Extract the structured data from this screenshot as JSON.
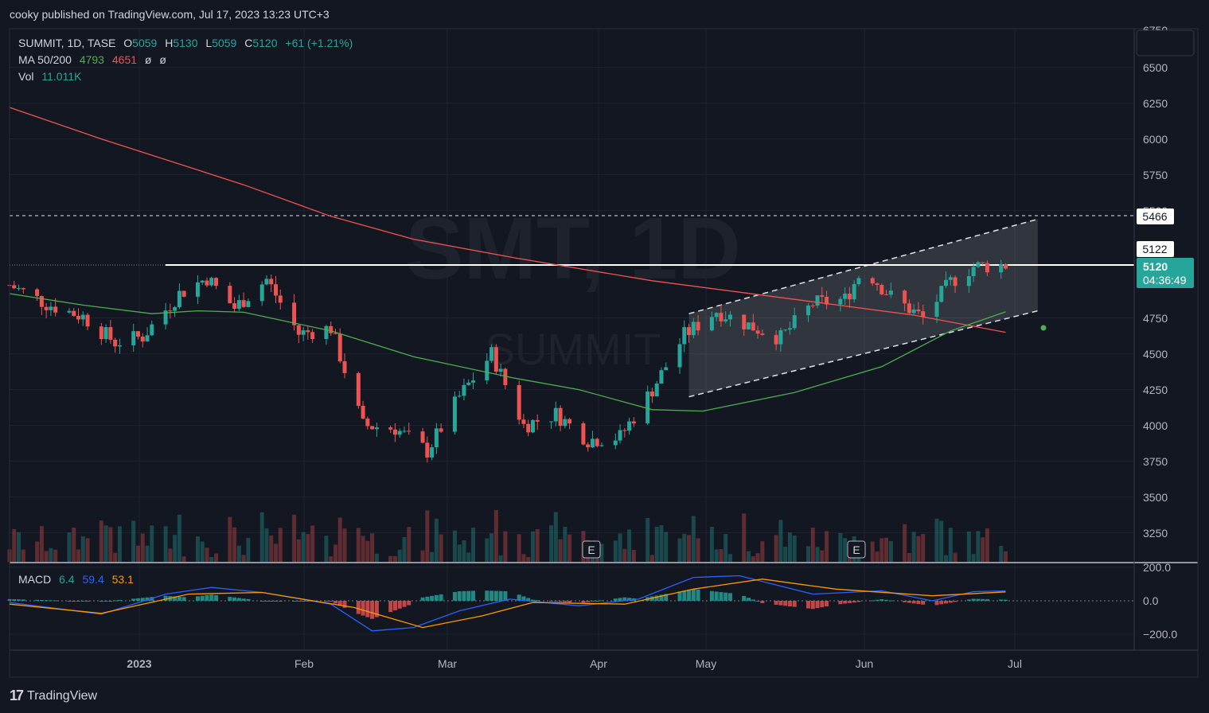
{
  "header": {
    "publisher": "cooky published on TradingView.com, Jul 17, 2023 13:23 UTC+3"
  },
  "legend": {
    "symbol": "SUMMIT, 1D, TASE",
    "o_label": "O",
    "o": "5059",
    "h_label": "H",
    "h": "5130",
    "l_label": "L",
    "l": "5059",
    "c_label": "C",
    "c": "5120",
    "change": "+61 (+1.21%)",
    "ma_label": "MA 50/200",
    "ma50": "4793",
    "ma200": "4651",
    "ma_x1": "ø",
    "ma_x2": "ø",
    "vol_label": "Vol",
    "vol": "11.011K",
    "macd_label": "MACD",
    "macd_hist": "6.4",
    "macd_line": "59.4",
    "macd_signal": "53.1"
  },
  "watermark": {
    "main": "SMT, 1D",
    "sub": "SUMMIT"
  },
  "price_axis": {
    "ticks": [
      "6750",
      "6500",
      "6250",
      "6000",
      "5750",
      "5500",
      "4750",
      "4500",
      "4250",
      "4000",
      "3750",
      "3500",
      "3250"
    ]
  },
  "price_labels": {
    "line1": "5466",
    "line2": "5122",
    "last": "5120",
    "countdown": "04:36:49"
  },
  "macd_axis": {
    "ticks": [
      "200.0",
      "0.0",
      "−200.0"
    ]
  },
  "time_axis": {
    "ticks": [
      "2023",
      "Feb",
      "Mar",
      "Apr",
      "May",
      "Jun",
      "Jul"
    ]
  },
  "earnings_markers": [
    "E",
    "E"
  ],
  "footer": {
    "brand": "TradingView",
    "logo": "17"
  },
  "colors": {
    "up": "#26a69a",
    "down": "#ef5350",
    "ma50": "#4caf50",
    "ma200": "#f05350",
    "macd": "#2962ff",
    "signal": "#ff9800",
    "bg": "#131722"
  },
  "chart_data": {
    "type": "candlestick",
    "title": "SUMMIT, 1D, TASE",
    "y_range": [
      3150,
      6750
    ],
    "x_range": [
      "2022-12-12",
      "2023-08-14"
    ],
    "horizontal_lines": [
      5466,
      5120
    ],
    "channel": {
      "upper": [
        {
          "x": "2023-05-09",
          "y": 4780
        },
        {
          "x": "2023-07-24",
          "y": 5440
        }
      ],
      "lower": [
        {
          "x": "2023-05-09",
          "y": 4200
        },
        {
          "x": "2023-07-24",
          "y": 4800
        }
      ]
    },
    "ma200": [
      {
        "x": "2022-12-12",
        "y": 6220
      },
      {
        "x": "2023-01-01",
        "y": 6000
      },
      {
        "x": "2023-02-01",
        "y": 5680
      },
      {
        "x": "2023-02-20",
        "y": 5460
      },
      {
        "x": "2023-03-10",
        "y": 5300
      },
      {
        "x": "2023-04-01",
        "y": 5170
      },
      {
        "x": "2023-05-01",
        "y": 5010
      },
      {
        "x": "2023-06-01",
        "y": 4880
      },
      {
        "x": "2023-06-27",
        "y": 4770
      },
      {
        "x": "2023-07-17",
        "y": 4650
      }
    ],
    "ma50": [
      {
        "x": "2022-12-12",
        "y": 4920
      },
      {
        "x": "2022-12-28",
        "y": 4840
      },
      {
        "x": "2023-01-12",
        "y": 4780
      },
      {
        "x": "2023-01-22",
        "y": 4800
      },
      {
        "x": "2023-02-01",
        "y": 4790
      },
      {
        "x": "2023-02-20",
        "y": 4660
      },
      {
        "x": "2023-03-10",
        "y": 4480
      },
      {
        "x": "2023-04-01",
        "y": 4330
      },
      {
        "x": "2023-04-15",
        "y": 4250
      },
      {
        "x": "2023-05-01",
        "y": 4110
      },
      {
        "x": "2023-05-12",
        "y": 4100
      },
      {
        "x": "2023-06-01",
        "y": 4230
      },
      {
        "x": "2023-06-20",
        "y": 4410
      },
      {
        "x": "2023-07-05",
        "y": 4660
      },
      {
        "x": "2023-07-17",
        "y": 4793
      }
    ],
    "macd_line": [
      {
        "x": "2022-12-12",
        "y": -10
      },
      {
        "x": "2023-01-01",
        "y": -80
      },
      {
        "x": "2023-01-15",
        "y": 40
      },
      {
        "x": "2023-01-25",
        "y": 80
      },
      {
        "x": "2023-02-05",
        "y": 50
      },
      {
        "x": "2023-02-20",
        "y": -20
      },
      {
        "x": "2023-03-01",
        "y": -180
      },
      {
        "x": "2023-03-10",
        "y": -160
      },
      {
        "x": "2023-03-20",
        "y": -60
      },
      {
        "x": "2023-03-31",
        "y": 10
      },
      {
        "x": "2023-04-15",
        "y": -30
      },
      {
        "x": "2023-04-28",
        "y": 10
      },
      {
        "x": "2023-05-10",
        "y": 140
      },
      {
        "x": "2023-05-20",
        "y": 150
      },
      {
        "x": "2023-06-05",
        "y": 40
      },
      {
        "x": "2023-06-20",
        "y": 60
      },
      {
        "x": "2023-07-01",
        "y": 0
      },
      {
        "x": "2023-07-10",
        "y": 55
      },
      {
        "x": "2023-07-17",
        "y": 59.4
      }
    ],
    "signal_line": [
      {
        "x": "2022-12-12",
        "y": -20
      },
      {
        "x": "2023-01-01",
        "y": -75
      },
      {
        "x": "2023-01-20",
        "y": 40
      },
      {
        "x": "2023-02-05",
        "y": 50
      },
      {
        "x": "2023-02-25",
        "y": -40
      },
      {
        "x": "2023-03-12",
        "y": -160
      },
      {
        "x": "2023-03-25",
        "y": -90
      },
      {
        "x": "2023-04-05",
        "y": -10
      },
      {
        "x": "2023-04-25",
        "y": -20
      },
      {
        "x": "2023-05-10",
        "y": 70
      },
      {
        "x": "2023-05-25",
        "y": 130
      },
      {
        "x": "2023-06-10",
        "y": 70
      },
      {
        "x": "2023-07-01",
        "y": 30
      },
      {
        "x": "2023-07-17",
        "y": 53.1
      }
    ],
    "candles_sample": [
      {
        "x": "2022-12-15",
        "o": 4990,
        "h": 5020,
        "l": 4700,
        "c": 4850
      },
      {
        "x": "2023-01-20",
        "o": 5020,
        "h": 5100,
        "l": 4950,
        "c": 4990
      },
      {
        "x": "2023-02-10",
        "o": 4760,
        "h": 4820,
        "l": 4600,
        "c": 4650
      },
      {
        "x": "2023-03-10",
        "o": 4010,
        "h": 4100,
        "l": 3620,
        "c": 3850
      },
      {
        "x": "2023-04-20",
        "o": 3830,
        "h": 4050,
        "l": 3790,
        "c": 3900
      },
      {
        "x": "2023-05-10",
        "o": 4560,
        "h": 4650,
        "l": 4480,
        "c": 4610
      },
      {
        "x": "2023-06-15",
        "o": 5050,
        "h": 5130,
        "l": 4880,
        "c": 5110
      },
      {
        "x": "2023-07-17",
        "o": 5059,
        "h": 5130,
        "l": 5059,
        "c": 5120
      }
    ]
  }
}
